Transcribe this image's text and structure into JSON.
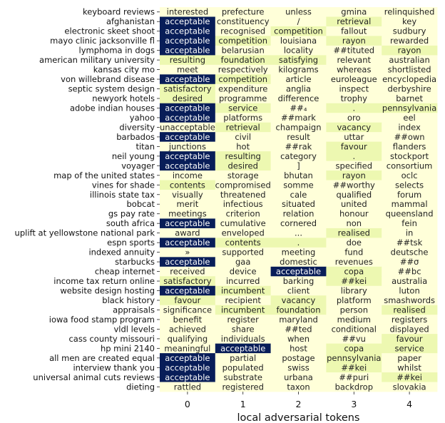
{
  "chart_data": {
    "type": "heatmap",
    "xlabel": "local adversarial tokens",
    "x_ticks": [
      "0",
      "1",
      "2",
      "3",
      "4"
    ],
    "colors": {
      "level_0": "#ffffd9",
      "level_1": "#edf8b1",
      "level_2": "#081d58",
      "text_dark": "#222222",
      "text_light": "#ffffff"
    },
    "rows": [
      {
        "label": "keyboard reviews",
        "tokens": [
          "interested",
          "prefecture",
          "unless",
          "gmina",
          "relinquished"
        ],
        "levels": [
          0,
          0,
          0,
          0,
          0
        ]
      },
      {
        "label": "afghanistan",
        "tokens": [
          "acceptable",
          "constituency",
          "/",
          "retrieval",
          "key"
        ],
        "levels": [
          2,
          0,
          0,
          1,
          0
        ]
      },
      {
        "label": "electronic skeet shoot",
        "tokens": [
          "acceptable",
          "recognised",
          "competition",
          "fallout",
          "sudbury"
        ],
        "levels": [
          2,
          0,
          1,
          0,
          0
        ]
      },
      {
        "label": "mayo clinic jacksonville fl",
        "tokens": [
          "acceptable",
          "competition",
          "louisiana",
          "rayon",
          "rewarded"
        ],
        "levels": [
          2,
          1,
          0,
          1,
          0
        ]
      },
      {
        "label": "lymphoma in dogs",
        "tokens": [
          "acceptable",
          "belarusian",
          "locality",
          "##tituted",
          "rayon"
        ],
        "levels": [
          2,
          0,
          0,
          0,
          1
        ]
      },
      {
        "label": "american military university",
        "tokens": [
          "resulting",
          "foundation",
          "satisfying",
          "relevant",
          "australian"
        ],
        "levels": [
          1,
          1,
          1,
          0,
          0
        ]
      },
      {
        "label": "kansas city mo",
        "tokens": [
          "meet",
          "respectively",
          "kilograms",
          "whereas",
          "shortlisted"
        ],
        "levels": [
          0,
          0,
          0,
          0,
          0
        ]
      },
      {
        "label": "von willebrand disease",
        "tokens": [
          "acceptable",
          "competition",
          "article",
          "euroleague",
          "encyclopedia"
        ],
        "levels": [
          2,
          1,
          0,
          0,
          0
        ]
      },
      {
        "label": "septic system design",
        "tokens": [
          "satisfactory",
          "expenditure",
          "anglia",
          "inspect",
          "derbyshire"
        ],
        "levels": [
          1,
          0,
          0,
          0,
          0
        ]
      },
      {
        "label": "newyork hotels",
        "tokens": [
          "desired",
          "programme",
          "difference",
          "trophy",
          "barnet"
        ],
        "levels": [
          1,
          0,
          0,
          0,
          0
        ]
      },
      {
        "label": "adobe indian houses",
        "tokens": [
          "acceptable",
          "service",
          "##₄",
          ".",
          "pennsylvania"
        ],
        "levels": [
          2,
          1,
          0,
          1,
          1
        ]
      },
      {
        "label": "yahoo",
        "tokens": [
          "acceptable",
          "platforms",
          "##mark",
          "oro",
          "eel"
        ],
        "levels": [
          2,
          0,
          0,
          0,
          0
        ]
      },
      {
        "label": "diversity",
        "tokens": [
          "unacceptable",
          "retrieval",
          "champaign",
          "vacancy",
          "index"
        ],
        "levels": [
          0,
          1,
          0,
          1,
          0
        ]
      },
      {
        "label": "barbados",
        "tokens": [
          "acceptable",
          "civil",
          "result",
          "uttar",
          "##own"
        ],
        "levels": [
          2,
          0,
          0,
          0,
          0
        ]
      },
      {
        "label": "titan",
        "tokens": [
          "junctions",
          "hot",
          "##rak",
          "favour",
          "flanders"
        ],
        "levels": [
          0,
          0,
          0,
          1,
          0
        ]
      },
      {
        "label": "neil young",
        "tokens": [
          "acceptable",
          "resulting",
          "category",
          ".",
          "stockport"
        ],
        "levels": [
          2,
          1,
          0,
          1,
          0
        ]
      },
      {
        "label": "voyager",
        "tokens": [
          "acceptable",
          "desired",
          "]",
          "specified",
          "consortium"
        ],
        "levels": [
          2,
          1,
          0,
          0,
          0
        ]
      },
      {
        "label": "map of the united states",
        "tokens": [
          "income",
          "storage",
          "bhutan",
          "rayon",
          "oclc"
        ],
        "levels": [
          0,
          0,
          0,
          1,
          0
        ]
      },
      {
        "label": "vines for shade",
        "tokens": [
          "contents",
          "compromised",
          "somme",
          "##worthy",
          "selects"
        ],
        "levels": [
          1,
          0,
          0,
          0,
          0
        ]
      },
      {
        "label": "illinois state tax",
        "tokens": [
          "visually",
          "threatened",
          "cale",
          "qualified",
          "forum"
        ],
        "levels": [
          0,
          0,
          0,
          0,
          0
        ]
      },
      {
        "label": "bobcat",
        "tokens": [
          "merit",
          "infectious",
          "situated",
          "united",
          "mammal"
        ],
        "levels": [
          0,
          0,
          0,
          0,
          0
        ]
      },
      {
        "label": "gs pay rate",
        "tokens": [
          "meetings",
          "criterion",
          "relation",
          "honour",
          "queensland"
        ],
        "levels": [
          0,
          0,
          0,
          0,
          0
        ]
      },
      {
        "label": "south africa",
        "tokens": [
          "acceptable",
          "cumulative",
          "cornered",
          "non",
          "fein"
        ],
        "levels": [
          2,
          0,
          0,
          0,
          0
        ]
      },
      {
        "label": "uplift at yellowstone national park",
        "tokens": [
          "award",
          "enveloped",
          "...",
          "realised",
          "in"
        ],
        "levels": [
          0,
          0,
          0,
          1,
          0
        ]
      },
      {
        "label": "espn sports",
        "tokens": [
          "acceptable",
          "contents",
          ".",
          "doe",
          "##tsk"
        ],
        "levels": [
          2,
          1,
          1,
          0,
          0
        ]
      },
      {
        "label": "indexed annuity",
        "tokens": [
          "»",
          "supported",
          "meeting",
          "fund",
          "deutsche"
        ],
        "levels": [
          0,
          0,
          0,
          0,
          0
        ]
      },
      {
        "label": "starbucks",
        "tokens": [
          "acceptable",
          "gaa",
          "domestic",
          "revenues",
          "##σ"
        ],
        "levels": [
          2,
          0,
          0,
          0,
          0
        ]
      },
      {
        "label": "cheap internet",
        "tokens": [
          "received",
          "device",
          "acceptable",
          "copa",
          "##bc"
        ],
        "levels": [
          0,
          0,
          2,
          1,
          0
        ]
      },
      {
        "label": "income tax return online",
        "tokens": [
          "satisfactory",
          "incurred",
          "barking",
          "##kei",
          "australia"
        ],
        "levels": [
          1,
          0,
          0,
          1,
          0
        ]
      },
      {
        "label": "website design hosting",
        "tokens": [
          "acceptable",
          "incumbent",
          "client",
          "library",
          "luton"
        ],
        "levels": [
          2,
          1,
          0,
          0,
          0
        ]
      },
      {
        "label": "black history",
        "tokens": [
          "favour",
          "recipient",
          "vacancy",
          "platform",
          "smashwords"
        ],
        "levels": [
          1,
          0,
          1,
          0,
          0
        ]
      },
      {
        "label": "appraisals",
        "tokens": [
          "significance",
          "incumbent",
          "foundation",
          "person",
          "realised"
        ],
        "levels": [
          0,
          1,
          1,
          0,
          1
        ]
      },
      {
        "label": "iowa food stamp program",
        "tokens": [
          "benefit",
          "register",
          "maryland",
          "medium",
          "registers"
        ],
        "levels": [
          0,
          0,
          0,
          0,
          0
        ]
      },
      {
        "label": "vldl levels",
        "tokens": [
          "achieved",
          "share",
          "##ted",
          "conditional",
          "displayed"
        ],
        "levels": [
          0,
          0,
          0,
          0,
          0
        ]
      },
      {
        "label": "cass county missouri",
        "tokens": [
          "qualifying",
          "individuals",
          "when",
          "##vu",
          "favour"
        ],
        "levels": [
          0,
          0,
          0,
          0,
          1
        ]
      },
      {
        "label": "hp mini 2140",
        "tokens": [
          "meaningful",
          "acceptable",
          "host",
          "copa",
          "service"
        ],
        "levels": [
          0,
          2,
          0,
          1,
          1
        ]
      },
      {
        "label": "all men are created equal",
        "tokens": [
          "acceptable",
          "partial",
          "postage",
          "pennsylvania",
          "paper"
        ],
        "levels": [
          2,
          0,
          0,
          1,
          0
        ]
      },
      {
        "label": "interview thank you",
        "tokens": [
          "acceptable",
          "populated",
          "swiss",
          "##kei",
          "whilst"
        ],
        "levels": [
          2,
          0,
          0,
          1,
          0
        ]
      },
      {
        "label": "universal animal cuts reviews",
        "tokens": [
          "acceptable",
          "substrate",
          "urbana",
          "##puri",
          "##kei"
        ],
        "levels": [
          2,
          0,
          0,
          0,
          1
        ]
      },
      {
        "label": "dieting",
        "tokens": [
          "rattled",
          "registered",
          "taxon",
          "backdrop",
          "slovakia"
        ],
        "levels": [
          0,
          0,
          0,
          0,
          0
        ]
      }
    ]
  }
}
